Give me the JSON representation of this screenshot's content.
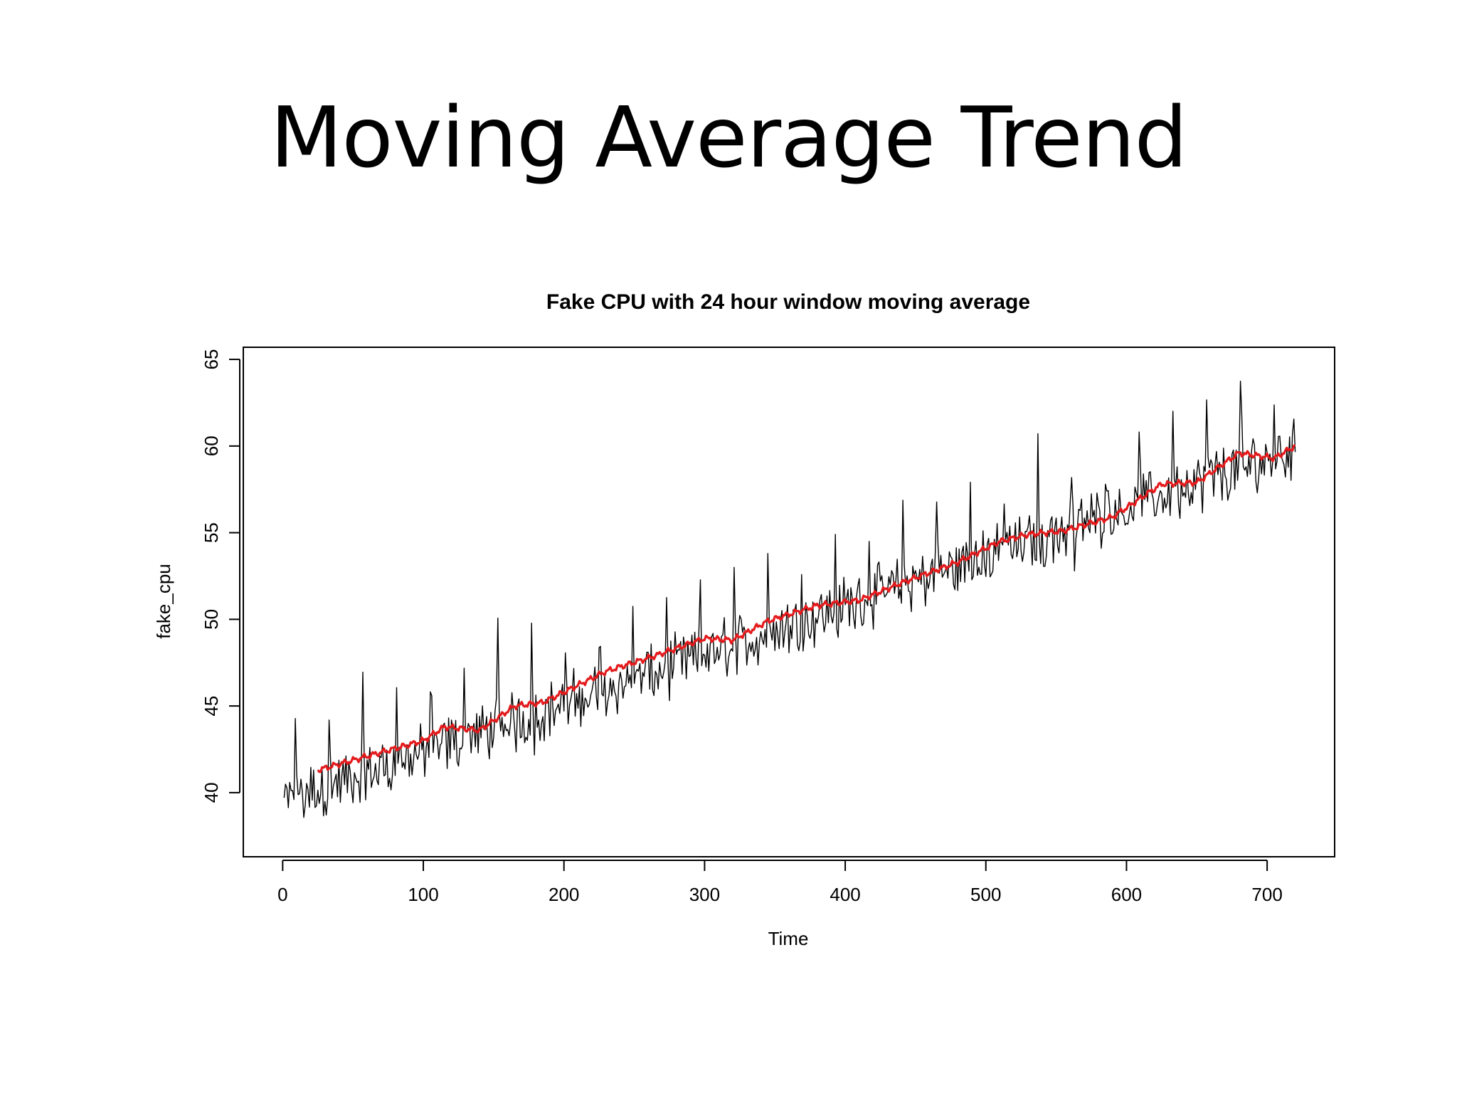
{
  "slide": {
    "title": "Moving Average Trend"
  },
  "colors": {
    "raw_series": "#000000",
    "moving_average": "#e41a1c",
    "background": "#ffffff"
  },
  "chart_data": {
    "type": "line",
    "title": "Fake CPU with 24 hour window moving average",
    "xlabel": "Time",
    "ylabel": "fake_cpu",
    "xlim": [
      -28,
      748
    ],
    "ylim": [
      36.3,
      65.7
    ],
    "x_ticks": [
      0,
      100,
      200,
      300,
      400,
      500,
      600,
      700
    ],
    "y_ticks": [
      40,
      45,
      50,
      55,
      60,
      65
    ],
    "grid": false,
    "series": [
      {
        "name": "fake_cpu",
        "color": "#000000",
        "generator": {
          "n": 720,
          "start": 39.5,
          "end": 59.8,
          "noise_amplitude": 1.4,
          "daily_period": 24,
          "spike_phase": 9,
          "spike_height": 4.6,
          "seed": 12345
        },
        "values": []
      },
      {
        "name": "moving_average (24h window)",
        "color": "#e41a1c",
        "x_start": 25,
        "x_end": 720,
        "knots": [
          [
            25,
            41.3
          ],
          [
            60,
            42.1
          ],
          [
            100,
            43.0
          ],
          [
            115,
            43.8
          ],
          [
            140,
            43.6
          ],
          [
            165,
            45.0
          ],
          [
            185,
            45.2
          ],
          [
            230,
            47.0
          ],
          [
            265,
            47.9
          ],
          [
            300,
            48.9
          ],
          [
            320,
            48.8
          ],
          [
            345,
            49.9
          ],
          [
            380,
            50.8
          ],
          [
            410,
            51.1
          ],
          [
            440,
            52.1
          ],
          [
            480,
            53.3
          ],
          [
            510,
            54.5
          ],
          [
            530,
            54.9
          ],
          [
            555,
            55.1
          ],
          [
            590,
            55.9
          ],
          [
            625,
            57.8
          ],
          [
            650,
            57.9
          ],
          [
            680,
            59.6
          ],
          [
            705,
            59.3
          ],
          [
            720,
            60.0
          ]
        ],
        "values": []
      }
    ]
  }
}
